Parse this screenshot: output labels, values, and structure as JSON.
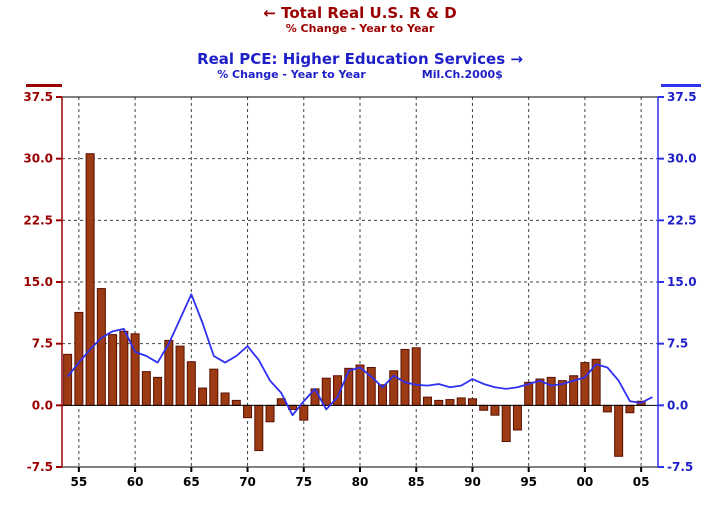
{
  "header": {
    "title1": "← Total Real U.S. R & D",
    "subtitle1": "% Change - Year to Year",
    "title2": "Real PCE: Higher Education Services →",
    "subtitle2_left": "% Change - Year to Year",
    "subtitle2_right": "Mil.Ch.2000$"
  },
  "colors": {
    "red_text": "#9b0000",
    "blue_text": "#1f1fc8",
    "bar_fill": "#9c3a13",
    "bar_stroke": "#5a1000",
    "line_color": "#3030f0"
  },
  "chart_data": {
    "type": "bar+line",
    "title": "Total Real U.S. R & D vs Real PCE: Higher Education Services",
    "ylabel_left": "% Change - Year to Year (Total Real U.S. R & D)",
    "ylabel_right": "% Change - Year to Year (Real PCE: Higher Education Services, Mil.Ch.2000$)",
    "ylim": [
      -7.5,
      37.5
    ],
    "grid": "dashed",
    "y_ticks": [
      {
        "value": 37.5,
        "label": "37.5"
      },
      {
        "value": 30.0,
        "label": "30.0"
      },
      {
        "value": 22.5,
        "label": "22.5"
      },
      {
        "value": 15.0,
        "label": "15.0"
      },
      {
        "value": 7.5,
        "label": "7.5"
      },
      {
        "value": 0.0,
        "label": "0.0"
      },
      {
        "value": -7.5,
        "label": "-7.5"
      }
    ],
    "x_ticks": [
      {
        "year": 1955,
        "label": "55"
      },
      {
        "year": 1960,
        "label": "60"
      },
      {
        "year": 1965,
        "label": "65"
      },
      {
        "year": 1970,
        "label": "70"
      },
      {
        "year": 1975,
        "label": "75"
      },
      {
        "year": 1980,
        "label": "80"
      },
      {
        "year": 1985,
        "label": "85"
      },
      {
        "year": 1990,
        "label": "90"
      },
      {
        "year": 1995,
        "label": "95"
      },
      {
        "year": 2000,
        "label": "00"
      },
      {
        "year": 2005,
        "label": "05"
      }
    ],
    "bars": {
      "name": "Total Real U.S. R & D, % change year to year",
      "start_year": 1954,
      "values": [
        6.2,
        11.3,
        30.6,
        14.2,
        8.6,
        9.0,
        8.7,
        4.1,
        3.4,
        7.9,
        7.2,
        5.3,
        2.1,
        4.4,
        1.5,
        0.6,
        -1.5,
        -5.5,
        -2.0,
        0.8,
        -0.5,
        -1.8,
        2.0,
        3.3,
        3.6,
        4.5,
        4.9,
        4.6,
        2.5,
        4.2,
        6.8,
        7.0,
        1.0,
        0.6,
        0.7,
        0.9,
        0.8,
        -0.6,
        -1.2,
        -4.4,
        -3.0,
        2.8,
        3.2,
        3.4,
        3.0,
        3.6,
        5.2,
        5.6,
        -0.8,
        -6.2,
        -0.9,
        0.5
      ]
    },
    "line": {
      "name": "Real PCE: Higher Education Services, % change year to year",
      "start_year": 1954,
      "values": [
        3.5,
        5.2,
        6.8,
        8.2,
        9.0,
        9.3,
        6.5,
        6.0,
        5.2,
        7.5,
        10.5,
        13.5,
        10.0,
        6.0,
        5.2,
        6.0,
        7.2,
        5.5,
        3.0,
        1.5,
        -1.2,
        0.5,
        2.0,
        -0.5,
        1.0,
        4.2,
        4.6,
        3.5,
        2.2,
        3.6,
        2.8,
        2.5,
        2.4,
        2.6,
        2.2,
        2.4,
        3.2,
        2.6,
        2.2,
        2.0,
        2.2,
        2.6,
        3.0,
        2.4,
        2.6,
        3.0,
        3.4,
        5.0,
        4.6,
        3.0,
        0.5,
        0.3,
        1.0
      ]
    }
  }
}
